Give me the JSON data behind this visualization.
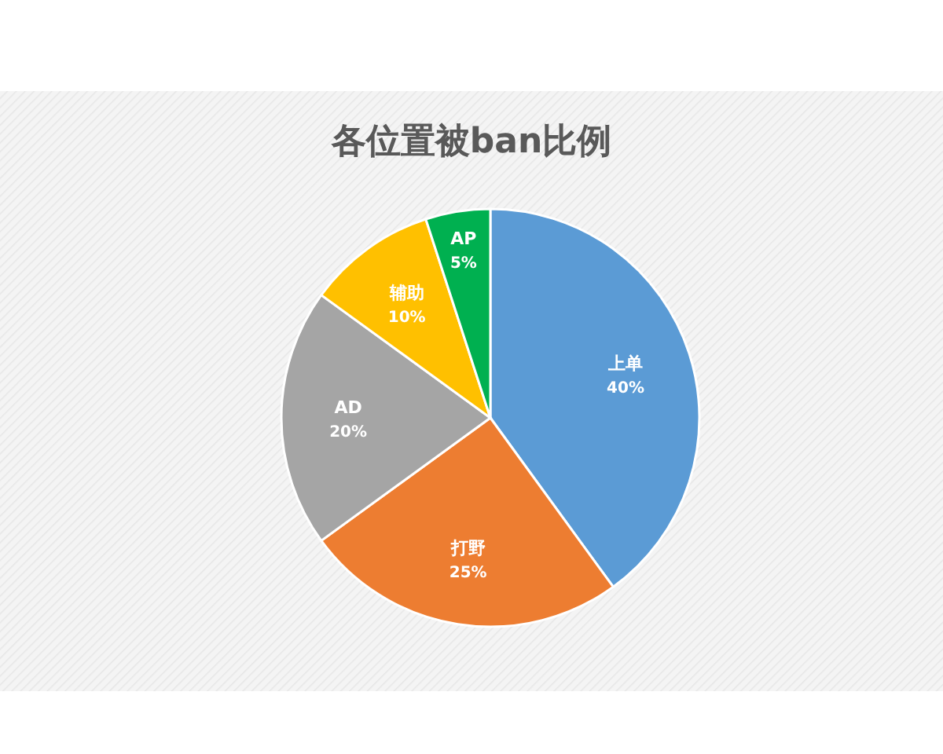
{
  "chart_data": {
    "type": "pie",
    "title": "各位置被ban比例",
    "categories": [
      "上单",
      "打野",
      "AD",
      "辅助",
      "AP"
    ],
    "values": [
      40,
      25,
      20,
      10,
      5
    ],
    "colors": [
      "#5b9bd5",
      "#ed7d31",
      "#a5a5a5",
      "#ffc000",
      "#00b050"
    ],
    "value_labels": [
      "40%",
      "25%",
      "20%",
      "10%",
      "5%"
    ]
  }
}
